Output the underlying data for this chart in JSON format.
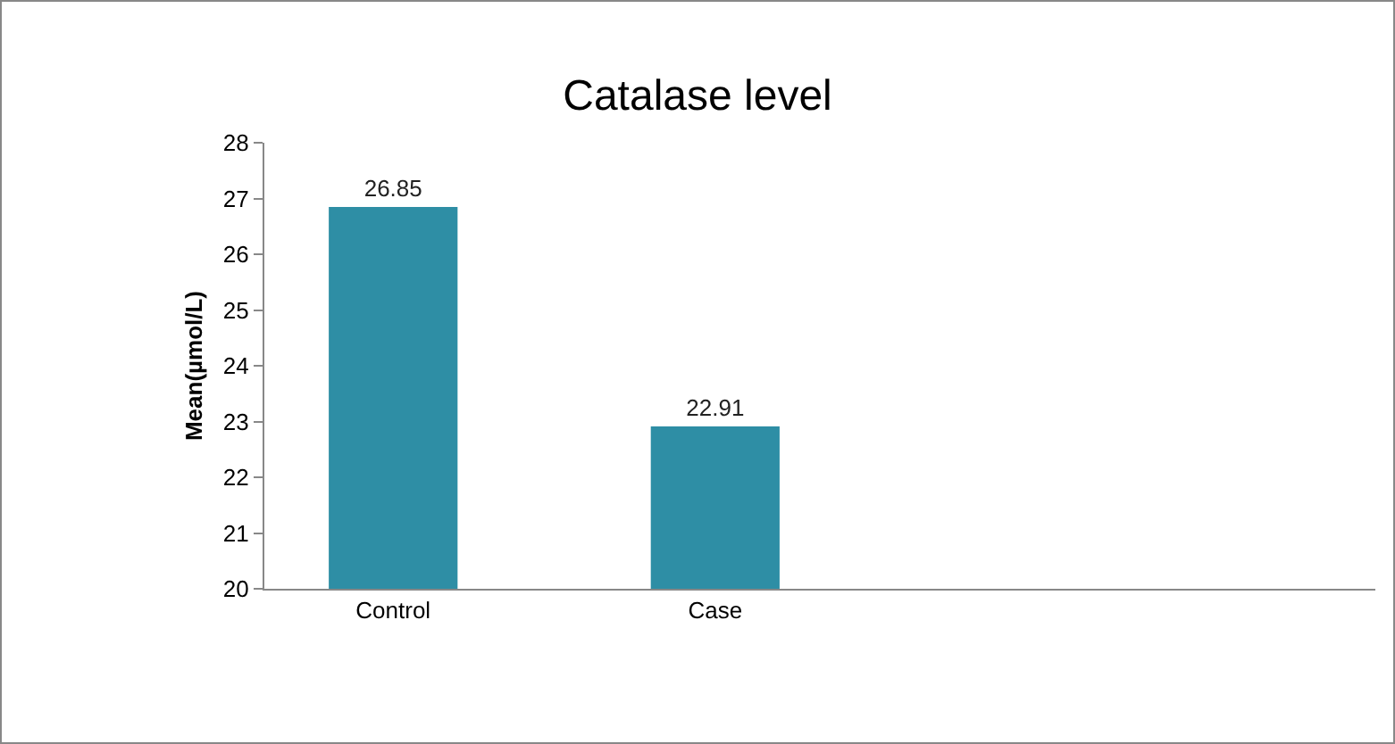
{
  "chart_data": {
    "type": "bar",
    "title": "Catalase level",
    "ylabel": "Mean(µmol/L)",
    "categories": [
      "Control",
      "Case"
    ],
    "values": [
      26.85,
      22.91
    ],
    "color": "#2e8ea5",
    "ylim": [
      20,
      28
    ],
    "yticks": [
      20,
      21,
      22,
      23,
      24,
      25,
      26,
      27,
      28
    ],
    "grid": false,
    "data_labels": true
  }
}
